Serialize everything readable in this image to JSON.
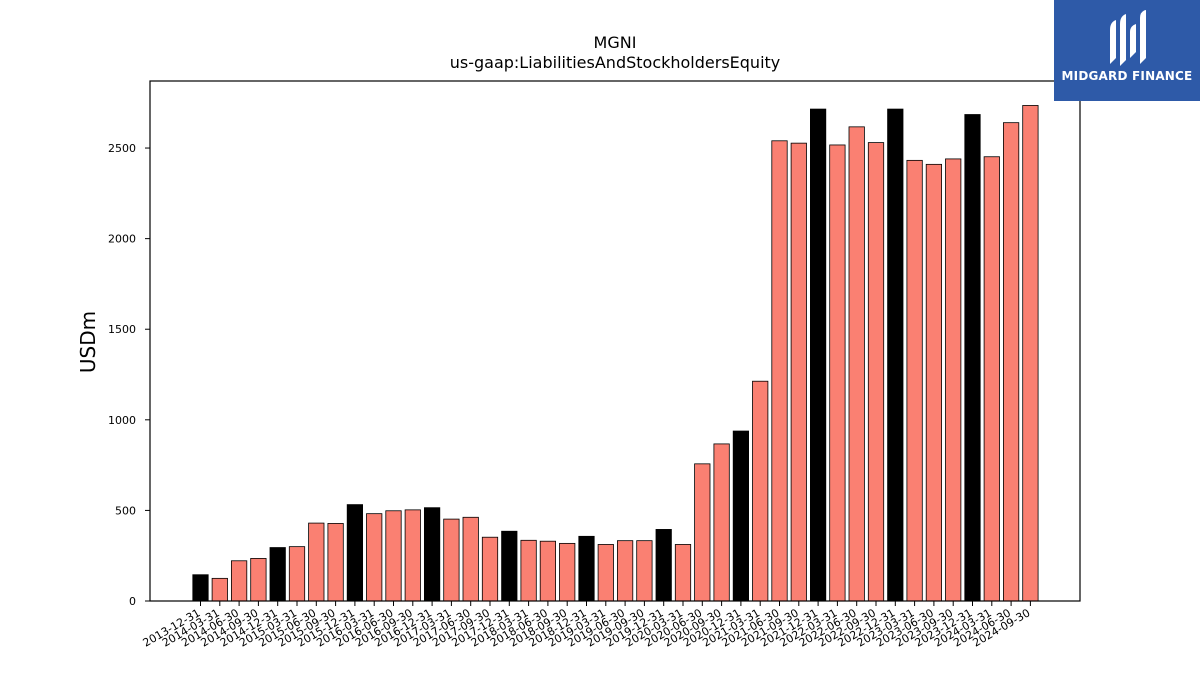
{
  "logo": {
    "text": "MIDGARD FINANCE",
    "icon": "midgard-m-logo-icon",
    "bg_color": "#2e5aa8"
  },
  "chart_data": {
    "type": "bar",
    "title": "MGNI",
    "subtitle": "us-gaap:LiabilitiesAndStockholdersEquity",
    "xlabel": "",
    "ylabel": "USDm",
    "ylim": [
      0,
      2870
    ],
    "yticks": [
      0,
      500,
      1000,
      1500,
      2000,
      2500
    ],
    "grid": false,
    "colors": {
      "annual": "#000000",
      "quarterly": "#fa8072",
      "edge": "#000000"
    },
    "categories": [
      "2013-12-31",
      "2014-03-31",
      "2014-06-30",
      "2014-09-30",
      "2014-12-31",
      "2015-03-31",
      "2015-06-30",
      "2015-09-30",
      "2015-12-31",
      "2016-03-31",
      "2016-06-30",
      "2016-09-30",
      "2016-12-31",
      "2017-03-31",
      "2017-06-30",
      "2017-09-30",
      "2017-12-31",
      "2018-03-31",
      "2018-06-30",
      "2018-09-30",
      "2018-12-31",
      "2019-03-31",
      "2019-06-30",
      "2019-09-30",
      "2019-12-31",
      "2020-03-31",
      "2020-06-30",
      "2020-09-30",
      "2020-12-31",
      "2021-03-31",
      "2021-06-30",
      "2021-09-30",
      "2021-12-31",
      "2022-03-31",
      "2022-06-30",
      "2022-09-30",
      "2022-12-31",
      "2023-03-31",
      "2023-06-30",
      "2023-09-30",
      "2023-12-31",
      "2024-03-31",
      "2024-06-30",
      "2024-09-30"
    ],
    "values": [
      145,
      125,
      222,
      235,
      295,
      300,
      430,
      428,
      532,
      482,
      498,
      503,
      515,
      452,
      462,
      352,
      385,
      335,
      330,
      318,
      357,
      312,
      333,
      333,
      395,
      312,
      757,
      867,
      938,
      1213,
      2540,
      2527,
      2715,
      2517,
      2617,
      2530,
      2715,
      2432,
      2410,
      2440,
      2685,
      2452,
      2640,
      2735
    ],
    "annual": [
      true,
      false,
      false,
      false,
      true,
      false,
      false,
      false,
      true,
      false,
      false,
      false,
      true,
      false,
      false,
      false,
      true,
      false,
      false,
      false,
      true,
      false,
      false,
      false,
      true,
      false,
      false,
      false,
      true,
      false,
      false,
      false,
      true,
      false,
      false,
      false,
      true,
      false,
      false,
      false,
      true,
      false,
      false,
      false
    ]
  }
}
